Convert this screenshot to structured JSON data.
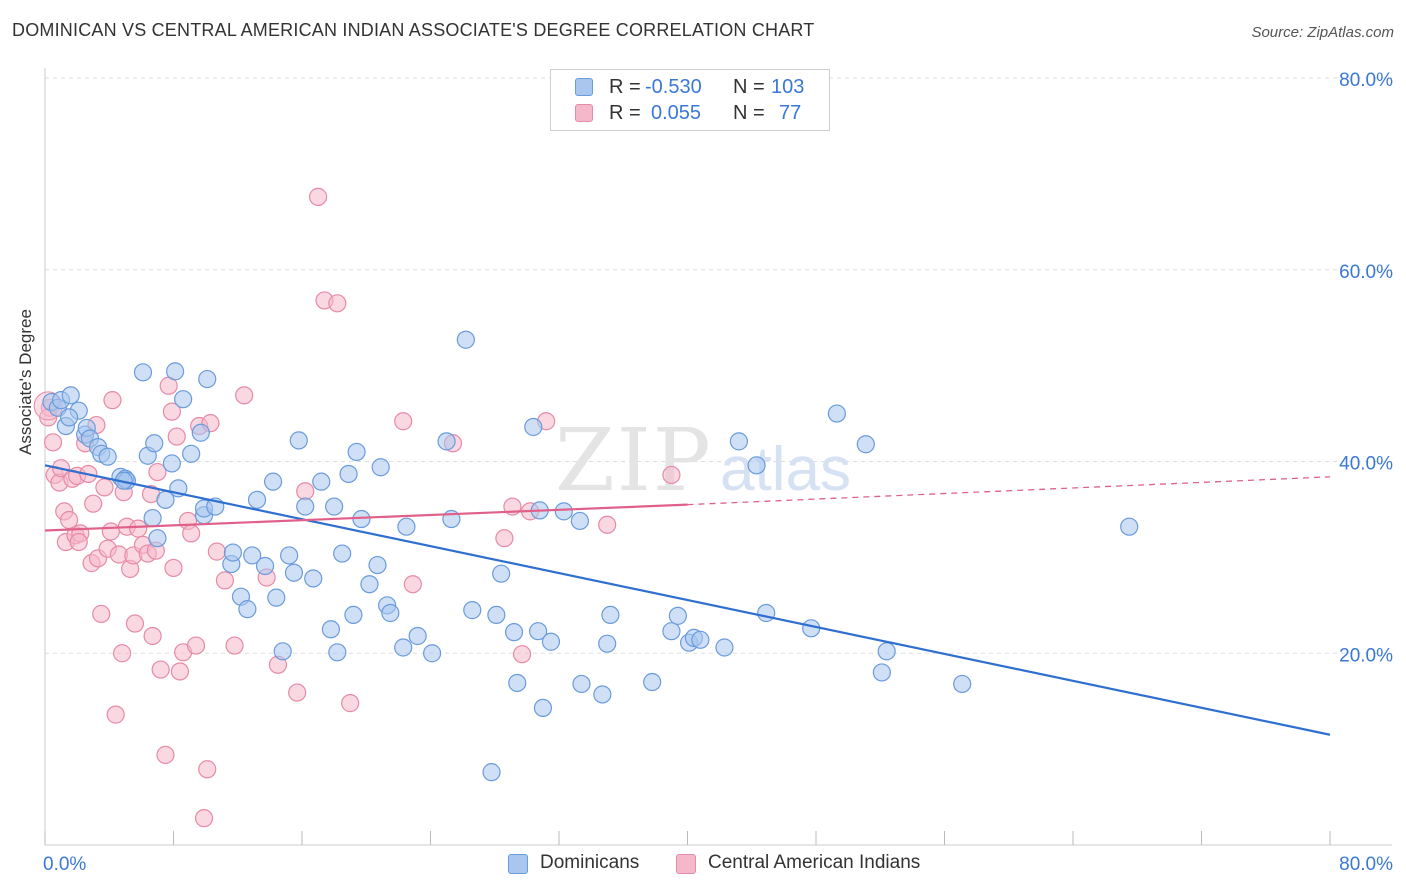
{
  "title": "DOMINICAN VS CENTRAL AMERICAN INDIAN ASSOCIATE'S DEGREE CORRELATION CHART",
  "source": "Source: ZipAtlas.com",
  "watermark": {
    "zip": "ZIP",
    "atlas": "atlas"
  },
  "colors": {
    "blue_fill": "#a8c6ee",
    "blue_stroke": "#6a9bdc",
    "blue_line": "#2f6fd0",
    "pink_fill": "#f5b8cb",
    "pink_stroke": "#e78aa7",
    "pink_line": "#e0608a",
    "axis_text": "#3a78d8",
    "grid": "#dddddd"
  },
  "legend": {
    "rows": [
      {
        "r_label": "R =",
        "r_value": "-0.530",
        "n_label": "N =",
        "n_value": "103",
        "color": "blue"
      },
      {
        "r_label": "R =",
        "r_value": "0.055",
        "n_label": "N =",
        "n_value": "77",
        "color": "pink"
      }
    ]
  },
  "bottom_legend": [
    "Dominicans",
    "Central American Indians"
  ],
  "chart_data": {
    "type": "scatter",
    "title": "DOMINICAN VS CENTRAL AMERICAN INDIAN ASSOCIATE'S DEGREE CORRELATION CHART",
    "xlabel": "",
    "ylabel": "Associate's Degree",
    "xlim": [
      0,
      80
    ],
    "ylim": [
      0,
      80
    ],
    "x_tick_labels": [
      "0.0%",
      "80.0%"
    ],
    "y_tick_labels": [
      "20.0%",
      "40.0%",
      "60.0%",
      "80.0%"
    ],
    "y_ticks": [
      20,
      40,
      60,
      80
    ],
    "grid": true,
    "legend_position": "top-center",
    "series": [
      {
        "name": "Dominicans",
        "color": "blue",
        "trend": {
          "x": [
            0,
            80
          ],
          "y": [
            39.6,
            11.5
          ]
        },
        "points": [
          [
            0.4,
            46.2
          ],
          [
            0.8,
            45.6
          ],
          [
            1.0,
            46.4
          ],
          [
            1.3,
            43.7
          ],
          [
            1.6,
            46.9
          ],
          [
            2.1,
            45.3
          ],
          [
            2.5,
            42.8
          ],
          [
            2.6,
            43.5
          ],
          [
            2.8,
            42.4
          ],
          [
            3.3,
            41.5
          ],
          [
            3.5,
            40.8
          ],
          [
            3.9,
            40.5
          ],
          [
            4.7,
            38.4
          ],
          [
            5.0,
            38.2
          ],
          [
            5.1,
            38.0
          ],
          [
            6.1,
            49.3
          ],
          [
            6.4,
            40.6
          ],
          [
            6.8,
            41.9
          ],
          [
            7.5,
            36.0
          ],
          [
            7.9,
            39.8
          ],
          [
            8.1,
            49.4
          ],
          [
            8.3,
            37.2
          ],
          [
            8.6,
            46.5
          ],
          [
            9.1,
            40.8
          ],
          [
            9.7,
            43.0
          ],
          [
            9.9,
            34.4
          ],
          [
            10.1,
            48.6
          ],
          [
            11.6,
            29.3
          ],
          [
            11.7,
            30.5
          ],
          [
            12.2,
            25.9
          ],
          [
            12.6,
            24.6
          ],
          [
            12.9,
            30.2
          ],
          [
            13.2,
            36.0
          ],
          [
            13.7,
            29.1
          ],
          [
            14.2,
            37.9
          ],
          [
            14.4,
            25.8
          ],
          [
            14.8,
            20.2
          ],
          [
            15.2,
            30.2
          ],
          [
            15.5,
            28.4
          ],
          [
            15.8,
            42.2
          ],
          [
            16.2,
            35.3
          ],
          [
            16.7,
            27.8
          ],
          [
            17.2,
            37.9
          ],
          [
            17.8,
            22.5
          ],
          [
            18.0,
            35.3
          ],
          [
            18.2,
            20.1
          ],
          [
            18.5,
            30.4
          ],
          [
            18.9,
            38.7
          ],
          [
            19.2,
            24.0
          ],
          [
            19.4,
            41.0
          ],
          [
            19.7,
            34.0
          ],
          [
            20.2,
            27.2
          ],
          [
            20.7,
            29.2
          ],
          [
            20.9,
            39.4
          ],
          [
            21.3,
            25.0
          ],
          [
            21.5,
            24.2
          ],
          [
            22.3,
            20.6
          ],
          [
            22.5,
            33.2
          ],
          [
            23.2,
            21.8
          ],
          [
            24.1,
            20.0
          ],
          [
            25.0,
            42.1
          ],
          [
            25.3,
            34.0
          ],
          [
            26.2,
            52.7
          ],
          [
            26.6,
            24.5
          ],
          [
            27.8,
            7.6
          ],
          [
            28.1,
            24.0
          ],
          [
            28.4,
            28.3
          ],
          [
            29.2,
            22.2
          ],
          [
            29.4,
            16.9
          ],
          [
            30.4,
            43.6
          ],
          [
            30.7,
            22.3
          ],
          [
            30.8,
            34.9
          ],
          [
            31.0,
            14.3
          ],
          [
            31.5,
            21.2
          ],
          [
            32.3,
            34.8
          ],
          [
            33.3,
            33.8
          ],
          [
            33.4,
            16.8
          ],
          [
            34.7,
            15.7
          ],
          [
            35.0,
            21.0
          ],
          [
            35.2,
            24.0
          ],
          [
            37.8,
            17.0
          ],
          [
            39.0,
            22.3
          ],
          [
            39.4,
            23.9
          ],
          [
            40.1,
            21.1
          ],
          [
            40.4,
            21.6
          ],
          [
            40.8,
            21.4
          ],
          [
            42.3,
            20.6
          ],
          [
            43.2,
            42.1
          ],
          [
            44.3,
            39.6
          ],
          [
            44.9,
            24.2
          ],
          [
            47.7,
            22.6
          ],
          [
            49.3,
            45.0
          ],
          [
            51.1,
            41.8
          ],
          [
            52.1,
            18.0
          ],
          [
            52.4,
            20.2
          ],
          [
            57.1,
            16.8
          ],
          [
            67.5,
            33.2
          ],
          [
            1.5,
            44.6
          ],
          [
            9.9,
            35.1
          ],
          [
            4.9,
            38.0
          ],
          [
            6.7,
            34.1
          ],
          [
            7.0,
            32.0
          ],
          [
            10.6,
            35.3
          ]
        ]
      },
      {
        "name": "Central American Indians",
        "color": "pink",
        "trend": {
          "x": [
            0,
            40
          ],
          "y": [
            32.8,
            35.5
          ]
        },
        "trend_dashed": {
          "x": [
            40,
            80
          ],
          "y": [
            35.5,
            38.4
          ]
        },
        "points": [
          [
            0.3,
            45.6
          ],
          [
            0.5,
            42.0
          ],
          [
            0.6,
            38.6
          ],
          [
            0.9,
            37.8
          ],
          [
            1.0,
            39.3
          ],
          [
            1.2,
            34.8
          ],
          [
            1.3,
            31.6
          ],
          [
            1.5,
            33.9
          ],
          [
            1.7,
            38.2
          ],
          [
            1.9,
            32.3
          ],
          [
            2.0,
            38.5
          ],
          [
            2.2,
            32.5
          ],
          [
            2.5,
            41.9
          ],
          [
            2.7,
            38.7
          ],
          [
            2.9,
            29.4
          ],
          [
            3.0,
            35.6
          ],
          [
            3.2,
            43.8
          ],
          [
            3.3,
            29.9
          ],
          [
            3.5,
            24.1
          ],
          [
            3.7,
            37.3
          ],
          [
            3.9,
            30.9
          ],
          [
            4.1,
            32.7
          ],
          [
            4.2,
            46.4
          ],
          [
            4.4,
            13.6
          ],
          [
            4.6,
            30.3
          ],
          [
            4.8,
            20.0
          ],
          [
            4.9,
            36.8
          ],
          [
            5.1,
            33.2
          ],
          [
            5.3,
            28.8
          ],
          [
            5.5,
            30.2
          ],
          [
            5.6,
            23.1
          ],
          [
            5.8,
            33.0
          ],
          [
            6.1,
            31.3
          ],
          [
            6.4,
            30.4
          ],
          [
            6.6,
            36.6
          ],
          [
            6.7,
            21.8
          ],
          [
            6.9,
            30.7
          ],
          [
            7.0,
            38.9
          ],
          [
            7.2,
            18.3
          ],
          [
            7.5,
            9.4
          ],
          [
            7.7,
            47.9
          ],
          [
            7.9,
            45.2
          ],
          [
            8.0,
            28.9
          ],
          [
            8.2,
            42.6
          ],
          [
            8.4,
            18.1
          ],
          [
            8.6,
            20.1
          ],
          [
            8.9,
            33.8
          ],
          [
            9.1,
            32.5
          ],
          [
            9.4,
            20.8
          ],
          [
            9.6,
            43.7
          ],
          [
            9.9,
            2.8
          ],
          [
            10.1,
            7.9
          ],
          [
            10.3,
            44.0
          ],
          [
            10.7,
            30.6
          ],
          [
            11.2,
            27.6
          ],
          [
            11.8,
            20.8
          ],
          [
            12.4,
            46.9
          ],
          [
            13.8,
            27.9
          ],
          [
            14.5,
            18.8
          ],
          [
            15.7,
            15.9
          ],
          [
            16.2,
            36.9
          ],
          [
            17.0,
            67.6
          ],
          [
            17.4,
            56.8
          ],
          [
            18.2,
            56.5
          ],
          [
            19.0,
            14.8
          ],
          [
            22.3,
            44.2
          ],
          [
            22.9,
            27.2
          ],
          [
            25.4,
            41.9
          ],
          [
            28.6,
            32.0
          ],
          [
            29.1,
            35.3
          ],
          [
            29.7,
            19.9
          ],
          [
            30.2,
            34.8
          ],
          [
            31.2,
            44.2
          ],
          [
            35.0,
            33.4
          ],
          [
            39.0,
            38.6
          ],
          [
            0.2,
            44.6
          ],
          [
            2.1,
            31.6
          ]
        ]
      }
    ]
  }
}
